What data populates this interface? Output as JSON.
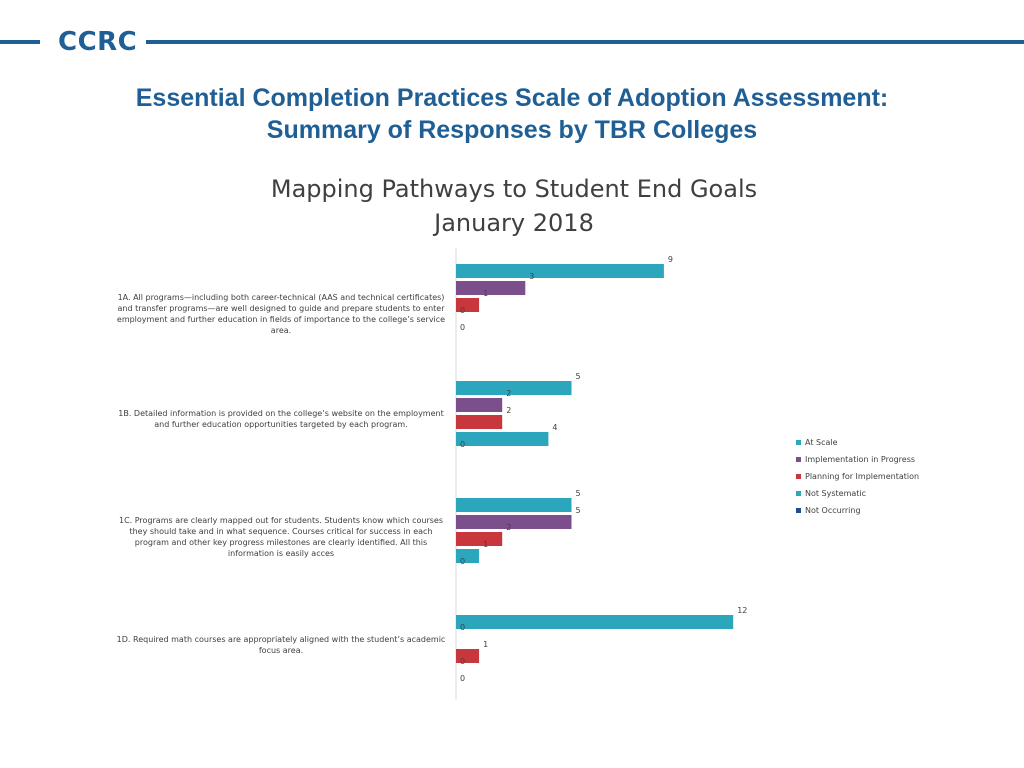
{
  "header": {
    "logo": "CCRC",
    "line1": "Essential Completion Practices Scale of Adoption Assessment:",
    "line2": "Summary of Responses by TBR Colleges"
  },
  "chart_data": {
    "type": "bar",
    "orientation": "horizontal",
    "title": [
      "Mapping Pathways to Student End Goals",
      "January 2018"
    ],
    "categories": [
      "1A. All programs—including both career-technical (AAS and technical certificates) and transfer programs—are well designed to guide and prepare students to enter employment and further education in fields of importance to the college’s service area.",
      "1B. Detailed information is provided on the college’s website on the employment and further education opportunities targeted by each program.",
      "1C. Programs are clearly mapped out for students. Students know which courses they should take and in what sequence. Courses critical for success in each program and other key progress milestones are clearly identified. All this information is easily acces",
      "1D. Required math courses are appropriately aligned with the student’s academic focus area."
    ],
    "series": [
      {
        "name": "At Scale",
        "color": "#2ba6bd",
        "values": [
          9,
          5,
          5,
          12
        ]
      },
      {
        "name": "Implementation in Progress",
        "color": "#7b4f8c",
        "values": [
          3,
          2,
          5,
          0
        ]
      },
      {
        "name": "Planning for Implementation",
        "color": "#c8373c",
        "values": [
          1,
          2,
          2,
          1
        ]
      },
      {
        "name": "Not Systematic",
        "color": "#2ba6bd",
        "values": [
          0,
          4,
          1,
          0
        ]
      },
      {
        "name": "Not Occurring",
        "color": "#1f4e8c",
        "values": [
          0,
          0,
          0,
          0
        ]
      }
    ],
    "xlim": [
      0,
      12
    ],
    "legend": "right",
    "grid": false
  }
}
